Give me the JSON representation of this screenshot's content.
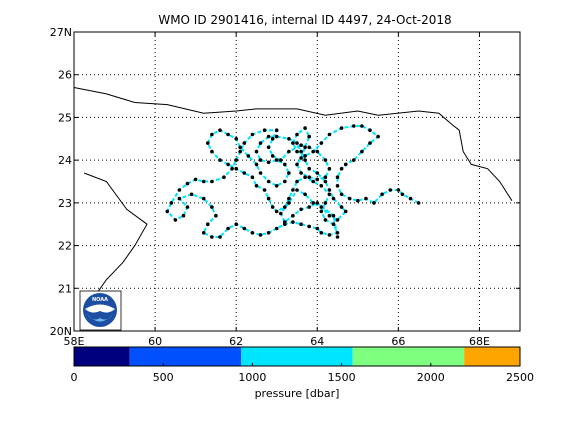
{
  "title": "WMO ID 2901416, internal ID 4497, 24-Oct-2018",
  "map": {
    "lon_range": [
      58,
      69
    ],
    "lat_range": [
      20,
      27
    ],
    "lon_ticks": [
      {
        "v": 58,
        "label": "58E"
      },
      {
        "v": 60,
        "label": "60"
      },
      {
        "v": 62,
        "label": "62"
      },
      {
        "v": 64,
        "label": "64"
      },
      {
        "v": 66,
        "label": "66"
      },
      {
        "v": 68,
        "label": "68E"
      }
    ],
    "lat_ticks": [
      {
        "v": 20,
        "label": "20N"
      },
      {
        "v": 21,
        "label": "21"
      },
      {
        "v": 22,
        "label": "22"
      },
      {
        "v": 23,
        "label": "23"
      },
      {
        "v": 24,
        "label": "24"
      },
      {
        "v": 25,
        "label": "25"
      },
      {
        "v": 26,
        "label": "26"
      },
      {
        "v": 27,
        "label": "27N"
      }
    ],
    "grid": "dotted",
    "logo_text": "NOAA",
    "coastline_north": [
      [
        58,
        25.7
      ],
      [
        58.8,
        25.55
      ],
      [
        59.5,
        25.35
      ],
      [
        60.3,
        25.3
      ],
      [
        61.2,
        25.1
      ],
      [
        62,
        25.15
      ],
      [
        62.5,
        25.2
      ],
      [
        63.5,
        25.2
      ],
      [
        64.2,
        25.05
      ],
      [
        65,
        25.15
      ],
      [
        65.5,
        25.05
      ],
      [
        66.5,
        25.15
      ],
      [
        67,
        25.1
      ],
      [
        67.3,
        24.85
      ],
      [
        67.5,
        24.7
      ],
      [
        67.6,
        24.2
      ],
      [
        67.8,
        23.9
      ],
      [
        68.2,
        23.8
      ],
      [
        68.5,
        23.5
      ],
      [
        68.8,
        23.05
      ]
    ],
    "coastline_west": [
      [
        58.25,
        23.7
      ],
      [
        58.8,
        23.5
      ],
      [
        59.3,
        22.85
      ],
      [
        59.8,
        22.5
      ],
      [
        59.5,
        22
      ],
      [
        59.2,
        21.6
      ],
      [
        58.8,
        21.2
      ],
      [
        58.5,
        20.8
      ],
      [
        58.3,
        20.6
      ]
    ]
  },
  "chart_data": {
    "type": "trajectory-map",
    "xlabel": "",
    "ylabel": "",
    "colorbar": {
      "label": "pressure [dbar]",
      "range": [
        0,
        2500
      ],
      "ticks": [
        0,
        500,
        1000,
        1500,
        2000,
        2500
      ],
      "bins": [
        {
          "from": 0,
          "to": 312,
          "color": "#00007f"
        },
        {
          "from": 312,
          "to": 937,
          "color": "#0050ff"
        },
        {
          "from": 937,
          "to": 1562,
          "color": "#00e5ff"
        },
        {
          "from": 1562,
          "to": 2187,
          "color": "#7fff7f"
        },
        {
          "from": 2187,
          "to": 2500,
          "color": "#ffa500"
        }
      ]
    },
    "track_color": "#00e5ff",
    "track": [
      [
        66.5,
        23.0
      ],
      [
        66.3,
        23.1
      ],
      [
        66.1,
        23.2
      ],
      [
        66.0,
        23.3
      ],
      [
        65.8,
        23.3
      ],
      [
        65.6,
        23.2
      ],
      [
        65.4,
        23.0
      ],
      [
        65.2,
        23.1
      ],
      [
        65.0,
        23.05
      ],
      [
        64.8,
        23.1
      ],
      [
        64.6,
        23.2
      ],
      [
        64.5,
        23.4
      ],
      [
        64.5,
        23.6
      ],
      [
        64.6,
        23.8
      ],
      [
        64.7,
        23.9
      ],
      [
        64.9,
        24.0
      ],
      [
        65.1,
        24.2
      ],
      [
        65.3,
        24.4
      ],
      [
        65.5,
        24.55
      ],
      [
        65.3,
        24.7
      ],
      [
        65.1,
        24.8
      ],
      [
        64.9,
        24.8
      ],
      [
        64.6,
        24.75
      ],
      [
        64.3,
        24.6
      ],
      [
        64.1,
        24.4
      ],
      [
        63.9,
        24.2
      ],
      [
        63.7,
        24.1
      ],
      [
        63.5,
        24.2
      ],
      [
        63.4,
        24.4
      ],
      [
        63.5,
        24.6
      ],
      [
        63.7,
        24.75
      ],
      [
        63.8,
        24.55
      ],
      [
        63.7,
        24.3
      ],
      [
        63.6,
        24.05
      ],
      [
        63.5,
        23.9
      ],
      [
        63.6,
        23.7
      ],
      [
        63.8,
        23.6
      ],
      [
        64.0,
        23.55
      ],
      [
        64.2,
        23.6
      ],
      [
        64.3,
        23.8
      ],
      [
        64.2,
        24.0
      ],
      [
        64.0,
        24.2
      ],
      [
        63.8,
        24.3
      ],
      [
        63.6,
        24.35
      ],
      [
        63.3,
        24.2
      ],
      [
        63.1,
        24.0
      ],
      [
        62.9,
        24.1
      ],
      [
        62.8,
        24.3
      ],
      [
        62.9,
        24.5
      ],
      [
        63.0,
        24.7
      ],
      [
        62.7,
        24.7
      ],
      [
        62.4,
        24.6
      ],
      [
        62.2,
        24.4
      ],
      [
        62.1,
        24.2
      ],
      [
        62.0,
        24.0
      ],
      [
        61.9,
        23.8
      ],
      [
        61.7,
        23.6
      ],
      [
        61.4,
        23.5
      ],
      [
        61.2,
        23.5
      ],
      [
        61.0,
        23.55
      ],
      [
        60.8,
        23.45
      ],
      [
        60.6,
        23.3
      ],
      [
        60.4,
        23.0
      ],
      [
        60.3,
        22.8
      ],
      [
        60.5,
        22.6
      ],
      [
        60.7,
        22.7
      ],
      [
        60.8,
        22.9
      ],
      [
        60.6,
        23.1
      ],
      [
        60.9,
        23.2
      ],
      [
        61.2,
        23.1
      ],
      [
        61.4,
        22.9
      ],
      [
        61.5,
        22.7
      ],
      [
        61.3,
        22.5
      ],
      [
        61.2,
        22.3
      ],
      [
        61.4,
        22.2
      ],
      [
        61.6,
        22.2
      ],
      [
        61.8,
        22.4
      ],
      [
        62.0,
        22.5
      ],
      [
        62.2,
        22.4
      ],
      [
        62.4,
        22.3
      ],
      [
        62.6,
        22.25
      ],
      [
        62.8,
        22.3
      ],
      [
        63.0,
        22.4
      ],
      [
        63.2,
        22.5
      ],
      [
        63.4,
        22.55
      ],
      [
        63.6,
        22.5
      ],
      [
        63.8,
        22.45
      ],
      [
        64.0,
        22.4
      ],
      [
        64.1,
        22.3
      ],
      [
        64.3,
        22.25
      ],
      [
        64.5,
        22.3
      ],
      [
        64.4,
        22.5
      ],
      [
        64.2,
        22.6
      ],
      [
        64.1,
        22.8
      ],
      [
        64.2,
        23.0
      ],
      [
        64.3,
        23.2
      ],
      [
        64.1,
        23.4
      ],
      [
        63.9,
        23.5
      ],
      [
        63.7,
        23.6
      ],
      [
        63.5,
        23.5
      ],
      [
        63.4,
        23.3
      ],
      [
        63.3,
        23.1
      ],
      [
        63.2,
        22.9
      ],
      [
        63.0,
        22.8
      ],
      [
        62.9,
        22.9
      ],
      [
        62.8,
        23.1
      ],
      [
        62.7,
        23.3
      ],
      [
        62.5,
        23.4
      ],
      [
        62.4,
        23.6
      ],
      [
        62.2,
        23.7
      ],
      [
        62.0,
        23.8
      ],
      [
        61.8,
        23.9
      ],
      [
        61.6,
        24.0
      ],
      [
        61.4,
        24.2
      ],
      [
        61.3,
        24.4
      ],
      [
        61.4,
        24.6
      ],
      [
        61.6,
        24.7
      ],
      [
        61.8,
        24.6
      ],
      [
        62.0,
        24.5
      ],
      [
        62.1,
        24.3
      ],
      [
        62.3,
        24.1
      ],
      [
        62.5,
        23.9
      ],
      [
        62.6,
        23.7
      ],
      [
        62.8,
        23.5
      ],
      [
        63.0,
        23.4
      ],
      [
        63.2,
        23.5
      ],
      [
        63.3,
        23.7
      ],
      [
        63.2,
        23.9
      ],
      [
        63.0,
        24.0
      ],
      [
        62.8,
        23.95
      ],
      [
        62.6,
        24.0
      ],
      [
        62.5,
        24.2
      ],
      [
        62.6,
        24.4
      ],
      [
        62.8,
        24.55
      ],
      [
        63.0,
        24.55
      ],
      [
        63.3,
        24.5
      ],
      [
        63.5,
        24.4
      ],
      [
        63.6,
        24.2
      ],
      [
        63.7,
        24.0
      ],
      [
        63.8,
        23.8
      ],
      [
        64.0,
        23.7
      ],
      [
        64.2,
        23.5
      ],
      [
        64.3,
        23.3
      ],
      [
        64.4,
        23.1
      ],
      [
        64.6,
        22.9
      ],
      [
        64.7,
        22.8
      ],
      [
        64.5,
        22.6
      ],
      [
        64.3,
        22.7
      ],
      [
        64.1,
        22.9
      ],
      [
        63.9,
        23.0
      ],
      [
        63.7,
        23.2
      ],
      [
        63.5,
        23.3
      ],
      [
        63.3,
        23.0
      ],
      [
        63.1,
        22.75
      ],
      [
        63.2,
        22.55
      ],
      [
        63.4,
        22.7
      ],
      [
        63.6,
        22.85
      ],
      [
        63.8,
        22.9
      ],
      [
        64.0,
        23.0
      ],
      [
        64.4,
        22.7
      ],
      [
        64.5,
        22.2
      ]
    ]
  }
}
